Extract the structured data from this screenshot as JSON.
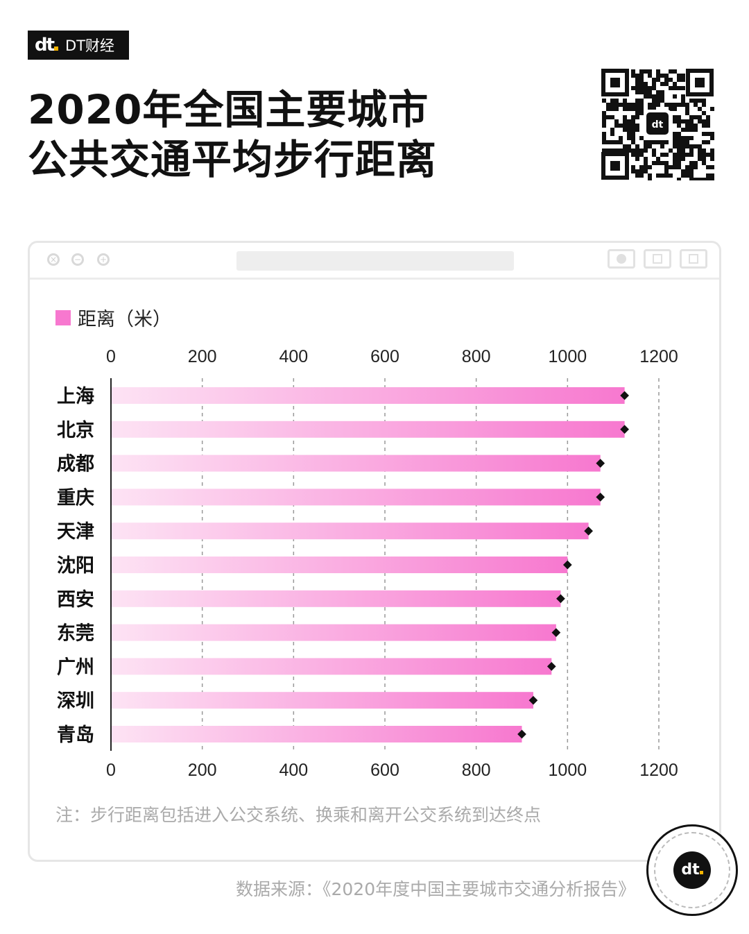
{
  "brand": {
    "mark": "dt",
    "name": "DT财经"
  },
  "title": {
    "line1": "2020年全国主要城市",
    "line2": "公共交通平均步行距离"
  },
  "note": "注：步行距离包括进入公交系统、换乘和离开公交系统到达终点",
  "source": "数据来源：《2020年度中国主要城市交通分析报告》",
  "badge_mark": "dt",
  "colors": {
    "bar_start": "#fde3f4",
    "bar_end": "#f778cf",
    "marker": "#111111",
    "grid": "#999999"
  },
  "chart_data": {
    "type": "bar",
    "orientation": "horizontal",
    "legend": "距离（米）",
    "legend_position": "top-left",
    "categories": [
      "上海",
      "北京",
      "成都",
      "重庆",
      "天津",
      "沈阳",
      "西安",
      "东莞",
      "广州",
      "深圳",
      "青岛"
    ],
    "series": [
      {
        "name": "距离（米）",
        "values": [
          1125,
          1125,
          1072,
          1072,
          1046,
          1000,
          985,
          975,
          965,
          925,
          900
        ]
      }
    ],
    "xlim": [
      0,
      1200
    ],
    "x_ticks": [
      "0",
      "200",
      "400",
      "600",
      "800",
      "1000",
      "1200"
    ],
    "grid": true
  }
}
